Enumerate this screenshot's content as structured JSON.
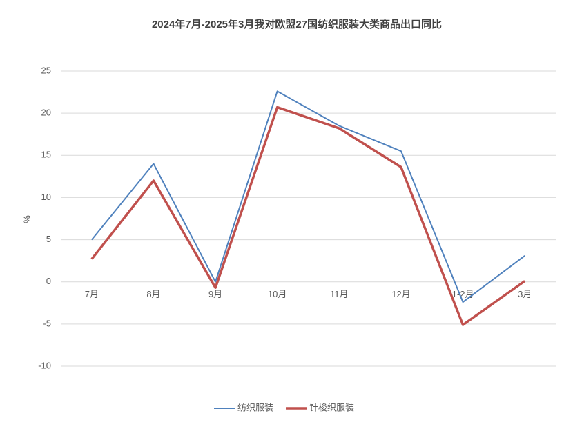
{
  "chart_data": {
    "type": "line",
    "title": "2024年7月-2025年3月我对欧盟27国纺织服装大类商品出口同比",
    "y_label": "%",
    "categories": [
      "7月",
      "8月",
      "9月",
      "10月",
      "11月",
      "12月",
      "1-2月",
      "3月"
    ],
    "series": [
      {
        "name": "纺织服装",
        "color": "#4f81bd",
        "values": [
          5.0,
          14.0,
          0.0,
          22.6,
          18.5,
          15.5,
          -2.4,
          3.1
        ]
      },
      {
        "name": "针梭织服装",
        "color": "#c0504d",
        "values": [
          2.7,
          12.0,
          -0.7,
          20.7,
          18.2,
          13.6,
          -5.1,
          0.1
        ]
      }
    ],
    "ylim": [
      -10,
      25
    ],
    "yticks": [
      -10,
      -5,
      0,
      5,
      10,
      15,
      20,
      25
    ],
    "grid": true,
    "legend": "bottom"
  }
}
